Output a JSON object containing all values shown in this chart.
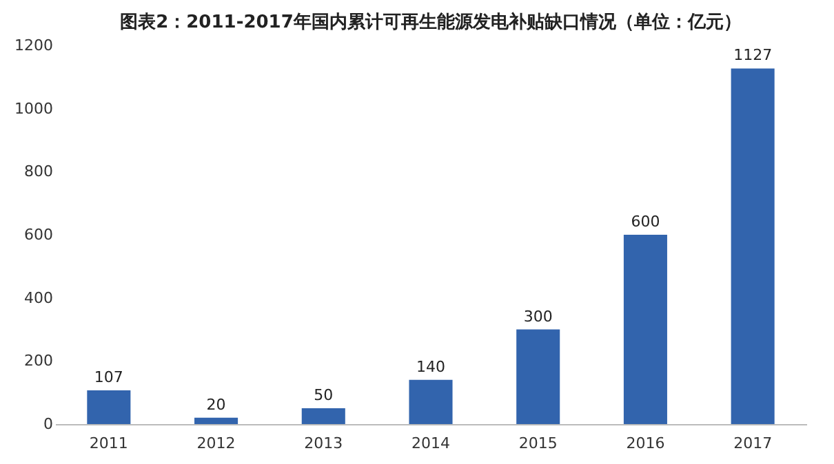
{
  "chart_data": {
    "type": "bar",
    "title": "图表2：2011-2017年国内累计可再生能源发电补贴缺口情况（单位：亿元）",
    "categories": [
      "2011",
      "2012",
      "2013",
      "2014",
      "2015",
      "2016",
      "2017"
    ],
    "values": [
      107,
      20,
      50,
      140,
      300,
      600,
      1127
    ],
    "color": "#3264ad",
    "ylim": [
      0,
      1200
    ],
    "yticks": [
      0,
      200,
      400,
      600,
      800,
      1000,
      1200
    ],
    "grid": false,
    "data_labels": true
  }
}
